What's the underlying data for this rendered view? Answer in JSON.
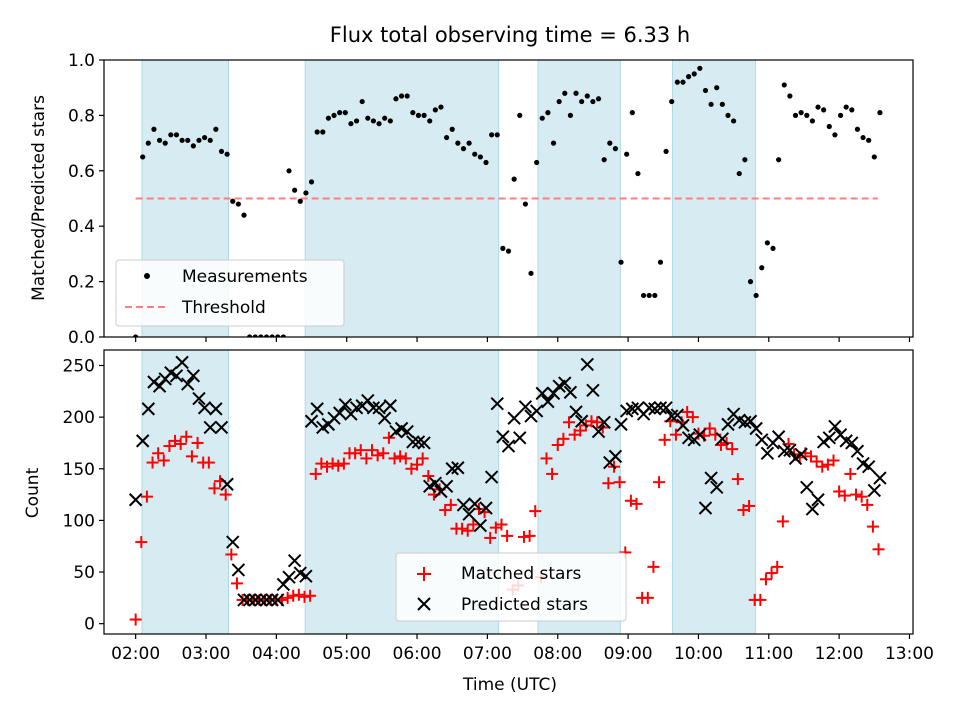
{
  "title": "Flux total observing time = 6.33 h",
  "chart_data": [
    {
      "type": "scatter",
      "ylabel": "Matched/Predicted stars",
      "ylim": [
        0,
        1.0
      ],
      "yticks": [
        0.0,
        0.2,
        0.4,
        0.6,
        0.8,
        1.0
      ],
      "ytick_labels": [
        "0.0",
        "0.2",
        "0.4",
        "0.6",
        "0.8",
        "1.0"
      ],
      "xlim": [
        1.55,
        13.05
      ],
      "shaded_intervals": [
        [
          2.09,
          3.32
        ],
        [
          4.41,
          7.16
        ],
        [
          7.72,
          8.89
        ],
        [
          9.63,
          10.81
        ]
      ],
      "threshold": {
        "value": 0.5,
        "x_range": [
          2.0,
          12.55
        ],
        "color": "#ff7f7f"
      },
      "legend": {
        "position": "lower-left",
        "entries": [
          "Measurements",
          "Threshold"
        ]
      },
      "series": [
        {
          "name": "Measurements",
          "marker": "dot",
          "color": "#000000",
          "x": [
            2.0,
            2.1,
            2.18,
            2.26,
            2.34,
            2.42,
            2.5,
            2.58,
            2.66,
            2.74,
            2.82,
            2.9,
            2.98,
            3.06,
            3.14,
            3.22,
            3.3,
            3.38,
            3.46,
            3.54,
            3.62,
            3.7,
            3.78,
            3.86,
            3.94,
            4.02,
            4.1,
            4.18,
            4.26,
            4.34,
            4.42,
            4.5,
            4.58,
            4.66,
            4.74,
            4.82,
            4.9,
            4.98,
            5.06,
            5.14,
            5.22,
            5.3,
            5.38,
            5.46,
            5.54,
            5.62,
            5.7,
            5.78,
            5.86,
            5.94,
            6.02,
            6.1,
            6.18,
            6.26,
            6.34,
            6.42,
            6.5,
            6.58,
            6.66,
            6.74,
            6.82,
            6.9,
            6.98,
            7.06,
            7.14,
            7.22,
            7.3,
            7.38,
            7.46,
            7.54,
            7.62,
            7.7,
            7.78,
            7.86,
            7.94,
            8.02,
            8.1,
            8.18,
            8.26,
            8.34,
            8.42,
            8.5,
            8.58,
            8.66,
            8.74,
            8.82,
            8.9,
            8.98,
            9.06,
            9.14,
            9.22,
            9.3,
            9.38,
            9.46,
            9.54,
            9.62,
            9.7,
            9.78,
            9.86,
            9.94,
            10.02,
            10.1,
            10.18,
            10.26,
            10.34,
            10.42,
            10.5,
            10.58,
            10.66,
            10.74,
            10.82,
            10.9,
            10.98,
            11.06,
            11.14,
            11.22,
            11.3,
            11.38,
            11.46,
            11.54,
            11.62,
            11.7,
            11.78,
            11.86,
            11.94,
            12.02,
            12.1,
            12.18,
            12.26,
            12.34,
            12.42,
            12.5,
            12.58
          ],
          "y": [
            0.0,
            0.65,
            0.7,
            0.75,
            0.71,
            0.7,
            0.73,
            0.73,
            0.71,
            0.71,
            0.69,
            0.71,
            0.72,
            0.71,
            0.75,
            0.67,
            0.66,
            0.49,
            0.48,
            0.44,
            0.0,
            0.0,
            0.0,
            0.0,
            0.0,
            0.0,
            0.0,
            0.6,
            0.53,
            0.49,
            0.52,
            0.56,
            0.74,
            0.74,
            0.79,
            0.8,
            0.81,
            0.81,
            0.77,
            0.78,
            0.85,
            0.79,
            0.78,
            0.77,
            0.79,
            0.78,
            0.86,
            0.87,
            0.87,
            0.81,
            0.8,
            0.8,
            0.78,
            0.82,
            0.83,
            0.72,
            0.75,
            0.7,
            0.68,
            0.7,
            0.66,
            0.65,
            0.63,
            0.73,
            0.73,
            0.32,
            0.31,
            0.57,
            0.8,
            0.48,
            0.23,
            0.63,
            0.79,
            0.81,
            0.7,
            0.85,
            0.88,
            0.8,
            0.88,
            0.85,
            0.87,
            0.85,
            0.86,
            0.64,
            0.7,
            0.68,
            0.27,
            0.66,
            0.81,
            0.59,
            0.15,
            0.15,
            0.15,
            0.27,
            0.67,
            0.85,
            0.92,
            0.92,
            0.94,
            0.95,
            0.97,
            0.89,
            0.84,
            0.9,
            0.84,
            0.8,
            0.78,
            0.59,
            0.64,
            0.2,
            0.15,
            0.25,
            0.34,
            0.32,
            0.64,
            0.91,
            0.87,
            0.8,
            0.81,
            0.8,
            0.78,
            0.83,
            0.82,
            0.76,
            0.73,
            0.8,
            0.83,
            0.82,
            0.75,
            0.72,
            0.71,
            0.65,
            0.81
          ]
        }
      ]
    },
    {
      "type": "scatter",
      "xlabel": "Time (UTC)",
      "ylabel": "Count",
      "ylim": [
        -10,
        265
      ],
      "yticks": [
        0,
        50,
        100,
        150,
        200,
        250
      ],
      "ytick_labels": [
        "0",
        "50",
        "100",
        "150",
        "200",
        "250"
      ],
      "xlim": [
        1.55,
        13.05
      ],
      "xticks": [
        2,
        3,
        4,
        5,
        6,
        7,
        8,
        9,
        10,
        11,
        12,
        13
      ],
      "xtick_labels": [
        "02:00",
        "03:00",
        "04:00",
        "05:00",
        "06:00",
        "07:00",
        "08:00",
        "09:00",
        "10:00",
        "11:00",
        "12:00",
        "13:00"
      ],
      "shaded_intervals": [
        [
          2.09,
          3.32
        ],
        [
          4.41,
          7.16
        ],
        [
          7.72,
          8.89
        ],
        [
          9.63,
          10.81
        ]
      ],
      "legend": {
        "position": "lower-center",
        "entries": [
          "Matched stars",
          "Predicted stars"
        ]
      },
      "series": [
        {
          "name": "Matched stars",
          "marker": "plus",
          "color": "#ff0000",
          "x": [
            2.0,
            2.08,
            2.16,
            2.24,
            2.32,
            2.4,
            2.48,
            2.56,
            2.64,
            2.72,
            2.8,
            2.88,
            2.96,
            3.04,
            3.12,
            3.2,
            3.28,
            3.36,
            3.44,
            3.52,
            3.6,
            3.68,
            3.76,
            3.84,
            3.92,
            4.0,
            4.08,
            4.16,
            4.24,
            4.32,
            4.4,
            4.48,
            4.56,
            4.64,
            4.72,
            4.8,
            4.88,
            4.96,
            5.04,
            5.12,
            5.2,
            5.28,
            5.36,
            5.44,
            5.52,
            5.6,
            5.68,
            5.76,
            5.84,
            5.92,
            6.0,
            6.08,
            6.16,
            6.24,
            6.32,
            6.4,
            6.48,
            6.56,
            6.64,
            6.72,
            6.8,
            6.88,
            6.96,
            7.04,
            7.12,
            7.2,
            7.28,
            7.36,
            7.44,
            7.52,
            7.6,
            7.68,
            7.76,
            7.84,
            7.92,
            8.0,
            8.08,
            8.16,
            8.24,
            8.32,
            8.4,
            8.48,
            8.56,
            8.64,
            8.72,
            8.8,
            8.88,
            8.96,
            9.04,
            9.12,
            9.2,
            9.28,
            9.36,
            9.44,
            9.52,
            9.6,
            9.68,
            9.76,
            9.84,
            9.92,
            10.0,
            10.08,
            10.16,
            10.24,
            10.32,
            10.4,
            10.48,
            10.56,
            10.64,
            10.72,
            10.8,
            10.88,
            10.96,
            11.04,
            11.12,
            11.2,
            11.28,
            11.36,
            11.44,
            11.52,
            11.6,
            11.68,
            11.76,
            11.84,
            11.92,
            12.0,
            12.08,
            12.16,
            12.24,
            12.32,
            12.4,
            12.48,
            12.56
          ],
          "y": [
            4,
            79,
            123,
            156,
            165,
            158,
            172,
            177,
            174,
            181,
            162,
            175,
            156,
            156,
            131,
            138,
            125,
            67,
            39,
            23,
            23,
            23,
            23,
            23,
            23,
            23,
            23,
            25,
            27,
            28,
            26,
            27,
            145,
            155,
            152,
            155,
            153,
            155,
            165,
            165,
            168,
            160,
            168,
            163,
            165,
            180,
            160,
            162,
            160,
            150,
            154,
            160,
            143,
            125,
            130,
            110,
            115,
            92,
            92,
            90,
            96,
            111,
            108,
            83,
            93,
            96,
            85,
            33,
            37,
            84,
            85,
            109,
            45,
            160,
            145,
            173,
            179,
            195,
            183,
            187,
            192,
            196,
            195,
            190,
            136,
            152,
            137,
            69,
            119,
            116,
            25,
            25,
            55,
            137,
            178,
            196,
            183,
            195,
            205,
            200,
            184,
            182,
            189,
            183,
            173,
            175,
            169,
            140,
            110,
            114,
            23,
            23,
            43,
            49,
            55,
            99,
            174,
            164,
            161,
            165,
            162,
            157,
            152,
            154,
            158,
            128,
            124,
            145,
            125,
            123,
            115,
            94,
            72
          ]
        },
        {
          "name": "Predicted stars",
          "marker": "x",
          "color": "#000000",
          "x": [
            2.0,
            2.1,
            2.18,
            2.26,
            2.34,
            2.42,
            2.5,
            2.58,
            2.66,
            2.74,
            2.82,
            2.9,
            2.98,
            3.06,
            3.14,
            3.22,
            3.3,
            3.38,
            3.46,
            3.54,
            3.62,
            3.7,
            3.78,
            3.86,
            3.94,
            4.02,
            4.1,
            4.18,
            4.26,
            4.34,
            4.42,
            4.5,
            4.58,
            4.66,
            4.74,
            4.82,
            4.9,
            4.98,
            5.06,
            5.14,
            5.22,
            5.3,
            5.38,
            5.46,
            5.54,
            5.62,
            5.7,
            5.78,
            5.86,
            5.94,
            6.02,
            6.1,
            6.18,
            6.26,
            6.34,
            6.42,
            6.5,
            6.58,
            6.66,
            6.74,
            6.82,
            6.9,
            6.98,
            7.06,
            7.14,
            7.22,
            7.3,
            7.38,
            7.46,
            7.54,
            7.62,
            7.7,
            7.78,
            7.86,
            7.94,
            8.02,
            8.1,
            8.18,
            8.26,
            8.34,
            8.42,
            8.5,
            8.58,
            8.66,
            8.74,
            8.82,
            8.9,
            8.98,
            9.06,
            9.14,
            9.22,
            9.3,
            9.38,
            9.46,
            9.54,
            9.62,
            9.7,
            9.78,
            9.86,
            9.94,
            10.02,
            10.1,
            10.18,
            10.26,
            10.34,
            10.42,
            10.5,
            10.58,
            10.66,
            10.74,
            10.82,
            10.9,
            10.98,
            11.06,
            11.14,
            11.22,
            11.3,
            11.38,
            11.46,
            11.54,
            11.62,
            11.7,
            11.78,
            11.86,
            11.94,
            12.02,
            12.1,
            12.18,
            12.26,
            12.34,
            12.42,
            12.5,
            12.58
          ],
          "y": [
            120,
            177,
            208,
            234,
            230,
            237,
            243,
            240,
            253,
            232,
            240,
            218,
            209,
            190,
            208,
            190,
            135,
            79,
            52,
            23,
            23,
            23,
            23,
            23,
            23,
            23,
            38,
            45,
            61,
            49,
            46,
            196,
            208,
            190,
            193,
            199,
            204,
            212,
            203,
            209,
            211,
            216,
            209,
            209,
            199,
            211,
            186,
            189,
            186,
            176,
            176,
            175,
            133,
            136,
            128,
            133,
            150,
            151,
            115,
            106,
            116,
            95,
            112,
            142,
            213,
            181,
            172,
            199,
            180,
            210,
            201,
            206,
            223,
            215,
            223,
            230,
            233,
            224,
            205,
            196,
            251,
            226,
            186,
            195,
            156,
            162,
            193,
            206,
            208,
            209,
            203,
            209,
            208,
            209,
            209,
            201,
            202,
            192,
            180,
            178,
            183,
            112,
            141,
            132,
            179,
            193,
            203,
            197,
            195,
            196,
            189,
            178,
            165,
            175,
            181,
            167,
            168,
            160,
            164,
            132,
            111,
            120,
            176,
            180,
            191,
            183,
            177,
            175,
            167,
            155,
            152,
            129,
            141
          ]
        }
      ]
    }
  ]
}
